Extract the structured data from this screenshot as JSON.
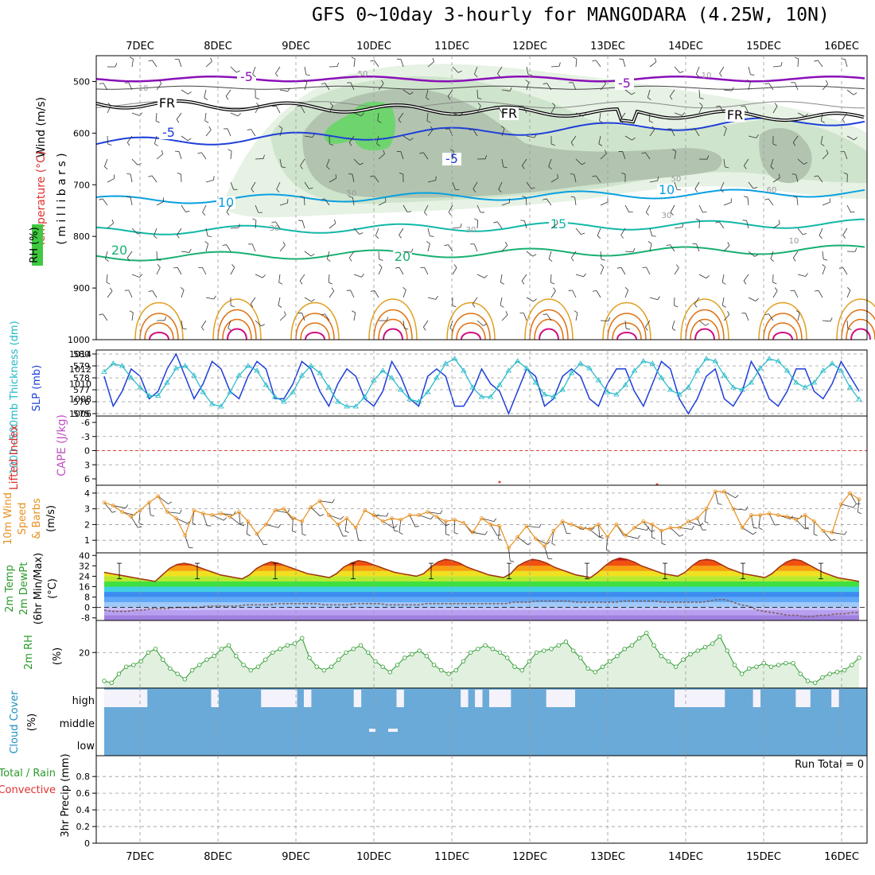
{
  "title": "GFS 0~10day 3-hourly for MANGODARA (4.25W, 10N)",
  "days": [
    "7DEC",
    "8DEC",
    "9DEC",
    "10DEC",
    "11DEC",
    "12DEC",
    "13DEC",
    "14DEC",
    "15DEC",
    "16DEC"
  ],
  "chart_data": [
    {
      "type": "heatmap",
      "name": "upper-air cross section",
      "ylabel_parts": [
        "Wind (m/s)",
        "Temperature (°C)",
        "RH (%)"
      ],
      "ylabel_unit": "( m i l l i b a r s )",
      "yticks": [
        500,
        600,
        700,
        800,
        900,
        1000
      ],
      "ylim": [
        1000,
        450
      ],
      "isotherm_labels": [
        "-5",
        "-5",
        "FR",
        "FR",
        "FR",
        "-5",
        "-5",
        "10",
        "10",
        "15",
        "20",
        "20"
      ],
      "rh_labels": [
        "10",
        "50",
        "50",
        "30",
        "30",
        "50",
        "30",
        "10",
        "60",
        "10"
      ],
      "colors": {
        "purple": "#8a10b8",
        "blue": "#1e3fd8",
        "lightblue": "#0aa0e0",
        "teal": "#12b8a8",
        "green": "#18b070",
        "orange": "#e0a020",
        "darkorange": "#e07010",
        "magenta": "#d01080"
      }
    },
    {
      "type": "line",
      "name": "thickness and sea level pressure",
      "ylabel_left": "1000~500mb Thickness (dm)",
      "ylabel_right": "SLP (mb)",
      "left_ticks": [
        575,
        576,
        577,
        578,
        579,
        580
      ],
      "right_ticks": [
        1006,
        1008,
        1010,
        1012,
        1014
      ],
      "series": [
        {
          "name": "SLP (mb)",
          "color": "#1e3fd8",
          "values": [
            1011,
            1007,
            1009,
            1012,
            1011,
            1008,
            1009,
            1012,
            1014,
            1011,
            1008,
            1010,
            1013,
            1012,
            1009,
            1008,
            1011,
            1013,
            1012,
            1008,
            1008,
            1010,
            1013,
            1012,
            1009,
            1007,
            1010,
            1012,
            1011,
            1008,
            1007,
            1009,
            1013,
            1011,
            1008,
            1007,
            1011,
            1012,
            1011,
            1007,
            1007,
            1009,
            1012,
            1010,
            1009,
            1006,
            1009,
            1012,
            1011,
            1007,
            1008,
            1011,
            1012,
            1011,
            1008,
            1007,
            1010,
            1012,
            1012,
            1009,
            1007,
            1010,
            1013,
            1012,
            1008,
            1006,
            1008,
            1011,
            1012,
            1008,
            1007,
            1009,
            1013,
            1011,
            1008,
            1007,
            1009,
            1012,
            1012,
            1009,
            1008,
            1010,
            1013,
            1011,
            1009
          ]
        },
        {
          "name": "Thickness (dm)",
          "color": "#20b8c8",
          "values": [
            578.5,
            579.2,
            579.0,
            578.0,
            577.2,
            576.5,
            576.5,
            577.6,
            578.8,
            579.0,
            578.2,
            576.8,
            575.8,
            575.6,
            576.8,
            578.2,
            579.0,
            578.6,
            577.4,
            576.4,
            576.0,
            576.8,
            578.2,
            579.0,
            578.4,
            577.2,
            576.0,
            575.6,
            575.6,
            576.4,
            577.8,
            578.6,
            578.0,
            577.0,
            576.2,
            576.0,
            576.8,
            578.0,
            579.2,
            579.6,
            578.6,
            577.2,
            576.4,
            576.4,
            577.4,
            578.6,
            579.4,
            578.8,
            577.6,
            576.6,
            576.4,
            577.0,
            578.4,
            579.2,
            578.8,
            577.8,
            576.8,
            576.6,
            577.4,
            578.6,
            579.4,
            579.2,
            578.0,
            577.0,
            576.6,
            577.2,
            578.6,
            579.6,
            579.4,
            578.2,
            577.2,
            577.0,
            577.6,
            578.8,
            579.6,
            579.4,
            578.6,
            577.6,
            577.2,
            577.6,
            578.6,
            579.2,
            578.6,
            577.2,
            576.2
          ]
        }
      ]
    },
    {
      "type": "line",
      "name": "lifted index and CAPE",
      "ylabel_left": "Lifted Index",
      "ylabel_right": "CAPE (J/kg)",
      "left_ticks": [
        "-6",
        "-3",
        "0",
        "3",
        "6"
      ],
      "zero_line_value": 0
    },
    {
      "type": "line",
      "name": "10m wind speed and barbs",
      "ylabel": "10m Wind Speed & Barbs (m/s)",
      "ylabel_parts": [
        "10m Wind",
        "Speed",
        "& Barbs",
        "(m/s)"
      ],
      "yticks": [
        1,
        2,
        3,
        4
      ],
      "ylim": [
        0.2,
        4.5
      ],
      "series": [
        {
          "name": "10m wind speed",
          "color": "#e89020",
          "values": [
            3.4,
            3.2,
            2.8,
            2.5,
            2.9,
            3.4,
            3.8,
            2.8,
            2.4,
            1.3,
            2.9,
            2.7,
            2.6,
            2.7,
            2.5,
            2.8,
            2.2,
            1.4,
            2.0,
            2.9,
            3.0,
            2.4,
            2.2,
            3.1,
            3.5,
            2.6,
            2.0,
            2.4,
            1.8,
            2.9,
            2.6,
            2.2,
            2.4,
            2.3,
            2.6,
            2.6,
            2.8,
            2.5,
            2.2,
            2.3,
            2.1,
            1.5,
            2.4,
            2.0,
            1.9,
            0.5,
            1.2,
            1.9,
            1.1,
            0.6,
            1.6,
            2.2,
            2.0,
            1.8,
            1.7,
            2.0,
            1.2,
            2.0,
            1.3,
            1.8,
            2.2,
            2.0,
            1.6,
            1.8,
            1.8,
            2.2,
            2.4,
            3.0,
            4.1,
            4.1,
            3.0,
            1.8,
            2.6,
            2.6,
            2.7,
            2.6,
            2.5,
            2.3,
            2.6,
            2.2,
            1.6,
            1.5,
            3.3,
            4.0,
            3.6
          ]
        }
      ]
    },
    {
      "type": "area",
      "name": "2m temperature and dewpoint",
      "ylabel_parts": [
        "2m Temp",
        "2m DewPt",
        "(6hr Min/Max)",
        "(°C)"
      ],
      "yticks": [
        -8,
        0,
        8,
        16,
        24,
        32,
        40
      ],
      "ylim": [
        -10,
        42
      ],
      "series": [
        {
          "name": "2m Temp",
          "color": "#a03010",
          "values": [
            27,
            26,
            25,
            24,
            23,
            22,
            21,
            20,
            25,
            30,
            33,
            34,
            33,
            31,
            29,
            27,
            25,
            24,
            23,
            22,
            25,
            30,
            33,
            35,
            34,
            32,
            30,
            28,
            26,
            25,
            24,
            23,
            26,
            31,
            34,
            36,
            35,
            33,
            31,
            29,
            27,
            26,
            25,
            24,
            26,
            31,
            35,
            37,
            36,
            34,
            31,
            29,
            27,
            25,
            24,
            23,
            26,
            32,
            35,
            37,
            36,
            34,
            31,
            29,
            27,
            25,
            24,
            23,
            27,
            32,
            36,
            38,
            37,
            35,
            32,
            30,
            28,
            26,
            25,
            24,
            27,
            32,
            36,
            37,
            36,
            33,
            30,
            28,
            26,
            25,
            24,
            23,
            26,
            31,
            35,
            37,
            36,
            33,
            30,
            27,
            25,
            23,
            22,
            21,
            20
          ]
        },
        {
          "name": "2m DewPt",
          "color": "#806060",
          "values": [
            -2,
            -3,
            -3,
            -3,
            -2,
            -2,
            -1,
            -1,
            -1,
            0,
            0,
            0,
            0,
            1,
            1,
            1,
            1,
            1,
            2,
            2,
            2,
            2,
            3,
            3,
            3,
            3,
            3,
            3,
            2,
            2,
            2,
            2,
            3,
            3,
            3,
            3,
            2,
            2,
            2,
            2,
            2,
            3,
            3,
            3,
            3,
            3,
            3,
            3,
            3,
            3,
            3,
            3,
            4,
            4,
            4,
            5,
            5,
            5,
            5,
            5,
            4,
            4,
            4,
            4,
            4,
            4,
            5,
            5,
            5,
            5,
            5,
            4,
            4,
            4,
            4,
            4,
            4,
            5,
            6,
            6,
            4,
            2,
            1,
            -2,
            -3,
            -4,
            -5,
            -6,
            -6,
            -7,
            -7,
            -6,
            -6,
            -5,
            -5,
            -4,
            -4
          ]
        }
      ]
    },
    {
      "type": "area",
      "name": "2m relative humidity",
      "ylabel": "2m RH (%)",
      "yticks": [
        20
      ],
      "ylim": [
        0,
        38
      ],
      "series": [
        {
          "name": "2m RH",
          "color": "#2a9a2a",
          "values": [
            4,
            3,
            8,
            12,
            13,
            15,
            20,
            22,
            16,
            11,
            8,
            5,
            10,
            13,
            16,
            18,
            22,
            24,
            18,
            13,
            10,
            12,
            16,
            20,
            22,
            24,
            25,
            28,
            17,
            12,
            10,
            12,
            16,
            20,
            22,
            24,
            20,
            15,
            12,
            9,
            13,
            17,
            19,
            21,
            18,
            13,
            10,
            8,
            10,
            15,
            20,
            22,
            24,
            22,
            20,
            17,
            12,
            10,
            15,
            20,
            21,
            22,
            24,
            26,
            21,
            17,
            11,
            9,
            12,
            15,
            18,
            22,
            24,
            28,
            31,
            24,
            18,
            15,
            12,
            16,
            19,
            21,
            23,
            25,
            29,
            21,
            13,
            8,
            11,
            12,
            14,
            12,
            13,
            14,
            14,
            8,
            4,
            3,
            6,
            8,
            9,
            10,
            13,
            17
          ]
        }
      ]
    },
    {
      "type": "bar",
      "name": "cloud cover",
      "ylabel": "Cloud Cover (%)",
      "levels": [
        "high",
        "middle",
        "low"
      ],
      "colors": {
        "sky": "#6aaad8",
        "cloud": "#f4f2fa"
      },
      "high": [
        1,
        1,
        1,
        1,
        1,
        1,
        0,
        0,
        0,
        0,
        0,
        0,
        0,
        0,
        0,
        1,
        0,
        0,
        0,
        0,
        0,
        0,
        1,
        1,
        1,
        1,
        1,
        0,
        1,
        0,
        0,
        0,
        0,
        0,
        0,
        1,
        0,
        0,
        0,
        0,
        0,
        1,
        0,
        0,
        0,
        0,
        0,
        0,
        0,
        0,
        1,
        0,
        1,
        0,
        1,
        1,
        1,
        0,
        0,
        0,
        0,
        0,
        1,
        1,
        1,
        1,
        0,
        0,
        0,
        0,
        0,
        0,
        0,
        0,
        0,
        0,
        0,
        0,
        0,
        0,
        1,
        1,
        1,
        1,
        1,
        1,
        1,
        0,
        0,
        0,
        0,
        1,
        0,
        0,
        0,
        0,
        0,
        1,
        1,
        0,
        0,
        0,
        1,
        0,
        0,
        0,
        0
      ]
    },
    {
      "type": "bar",
      "name": "3hr precipitation",
      "ylabel_parts": [
        "Total / Rain",
        "Convective",
        "3hr Precip (mm)"
      ],
      "yticks": [
        "0",
        "0.2",
        "0.4",
        "0.6",
        "0.8"
      ],
      "ylim": [
        0,
        1
      ],
      "run_total": "Run Total = 0"
    }
  ]
}
